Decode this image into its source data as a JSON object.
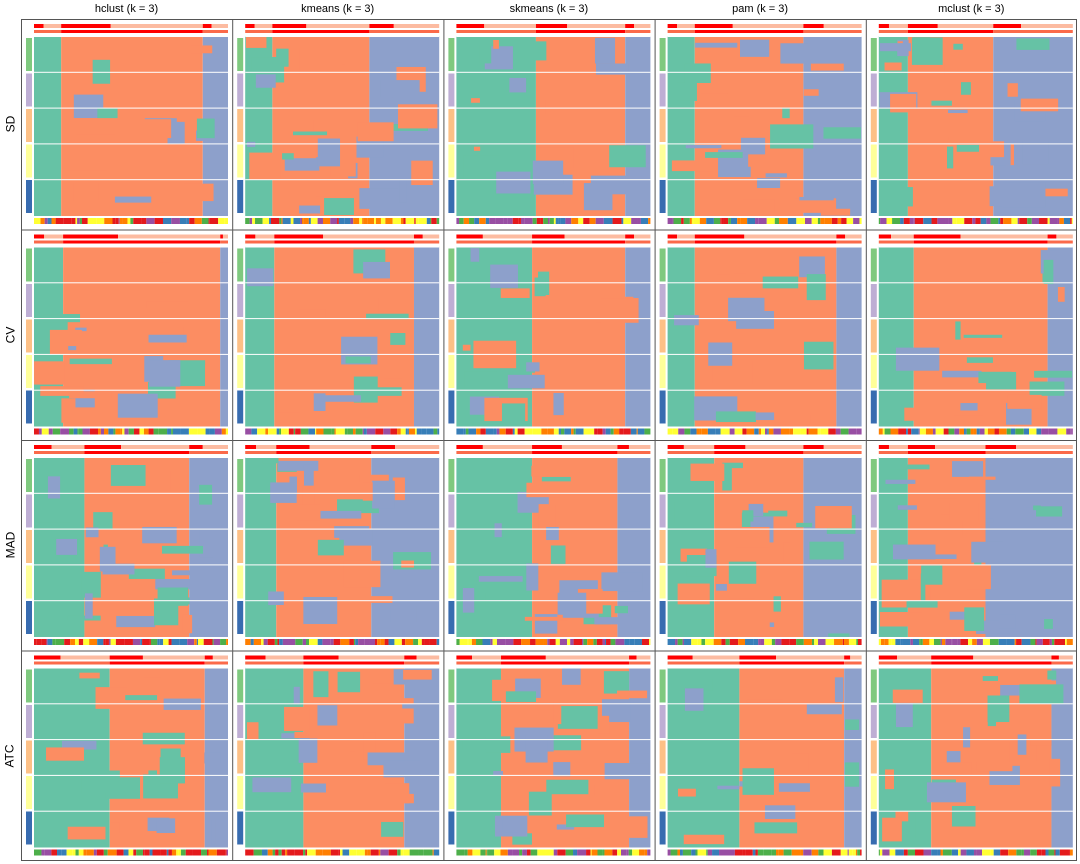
{
  "chart_data": {
    "type": "heatmap",
    "columns": [
      "hclust (k = 3)",
      "kmeans (k = 3)",
      "skmeans (k = 3)",
      "pam (k = 3)",
      "mclust (k = 3)"
    ],
    "rows": [
      "SD",
      "CV",
      "MAD",
      "ATC"
    ],
    "class_colors": {
      "1": "#66C2A5",
      "2": "#FC8D62",
      "3": "#8DA0CB"
    },
    "row_annotation_colors": [
      "#7FC97F",
      "#BEAED4",
      "#FDC086",
      "#FFFF99",
      "#386CB0"
    ],
    "class_proportions_note_free": true,
    "panels": [
      [
        [
          0.14,
          0.73,
          0.13
        ],
        [
          0.14,
          0.5,
          0.36
        ],
        [
          0.41,
          0.46,
          0.13
        ],
        [
          0.14,
          0.56,
          0.3
        ],
        [
          0.15,
          0.44,
          0.41
        ]
      ],
      [
        [
          0.15,
          0.81,
          0.04
        ],
        [
          0.15,
          0.72,
          0.13
        ],
        [
          0.39,
          0.48,
          0.13
        ],
        [
          0.14,
          0.73,
          0.13
        ],
        [
          0.18,
          0.69,
          0.13
        ]
      ],
      [
        [
          0.26,
          0.54,
          0.2
        ],
        [
          0.16,
          0.49,
          0.35
        ],
        [
          0.39,
          0.44,
          0.17
        ],
        [
          0.24,
          0.46,
          0.3
        ],
        [
          0.15,
          0.4,
          0.45
        ]
      ],
      [
        [
          0.39,
          0.49,
          0.12
        ],
        [
          0.3,
          0.52,
          0.18
        ],
        [
          0.23,
          0.66,
          0.11
        ],
        [
          0.37,
          0.54,
          0.09
        ],
        [
          0.27,
          0.62,
          0.11
        ]
      ]
    ]
  }
}
